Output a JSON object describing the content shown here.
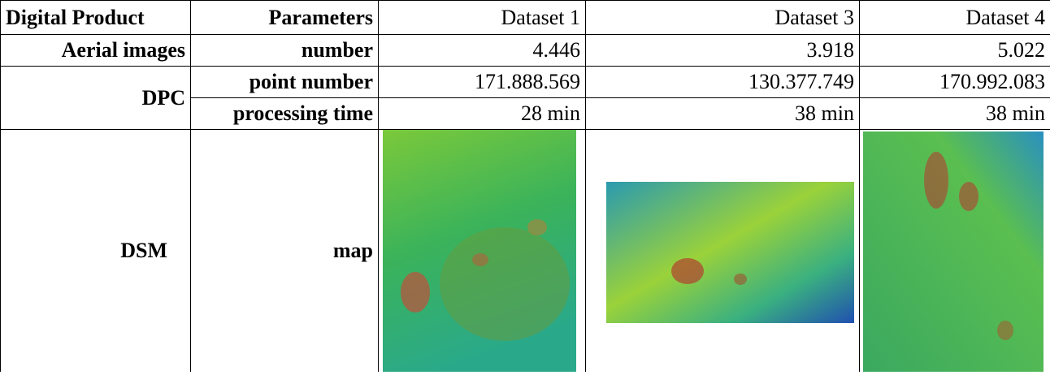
{
  "table": {
    "header": [
      "Digital Product",
      "Parameters",
      "Dataset 1",
      "Dataset 3",
      "Dataset 4"
    ],
    "rows": [
      [
        "Aerial images",
        "number",
        "4.446",
        "3.918",
        "5.022"
      ],
      [
        "DPC",
        "point number",
        "171.888.569",
        "130.377.749",
        "170.992.083"
      ],
      [
        "processing time",
        "28 min",
        "38 min",
        "38 min"
      ],
      [
        "DSM",
        "map"
      ]
    ]
  }
}
